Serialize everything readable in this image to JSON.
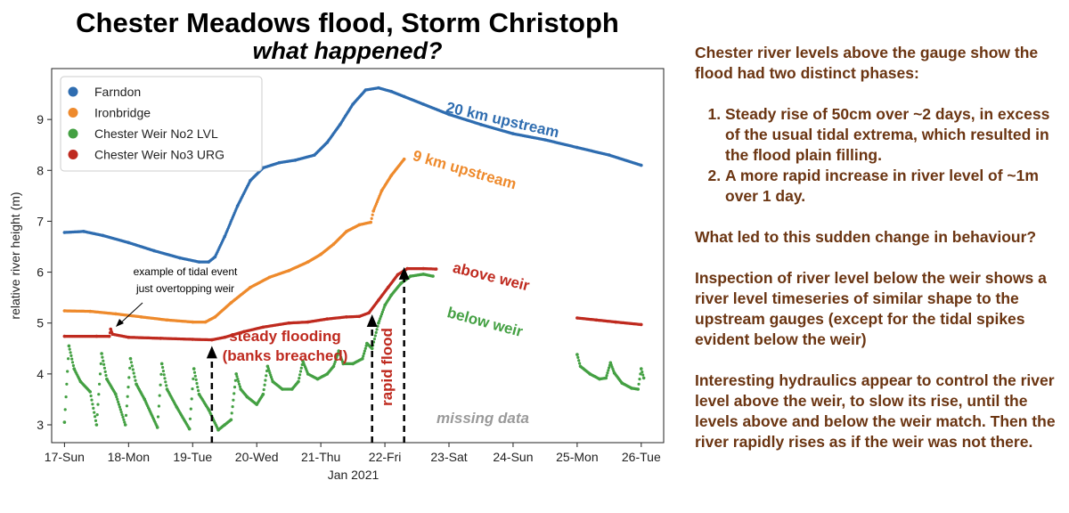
{
  "title": "Chester Meadows flood, Storm Christoph",
  "subtitle": "what happened?",
  "chart_data": {
    "type": "scatter",
    "xlabel": "Jan 2021",
    "ylabel": "relative river height (m)",
    "xlim": [
      16.8,
      26.35
    ],
    "ylim": [
      2.65,
      10.0
    ],
    "x_ticks": [
      17,
      18,
      19,
      20,
      21,
      22,
      23,
      24,
      25,
      26
    ],
    "x_tick_labels": [
      "17-Sun",
      "18-Mon",
      "19-Tue",
      "20-Wed",
      "21-Thu",
      "22-Fri",
      "23-Sat",
      "24-Sun",
      "25-Mon",
      "26-Tue"
    ],
    "y_ticks": [
      3,
      4,
      5,
      6,
      7,
      8,
      9
    ],
    "y_tick_labels": [
      "3",
      "4",
      "5",
      "6",
      "7",
      "8",
      "9"
    ],
    "legend_position": "top-left",
    "series": [
      {
        "name": "Farndon",
        "color": "#2f6db0",
        "points": [
          [
            17.0,
            6.78
          ],
          [
            17.3,
            6.8
          ],
          [
            17.6,
            6.72
          ],
          [
            18.0,
            6.58
          ],
          [
            18.4,
            6.42
          ],
          [
            18.8,
            6.28
          ],
          [
            19.1,
            6.2
          ],
          [
            19.25,
            6.2
          ],
          [
            19.35,
            6.3
          ],
          [
            19.5,
            6.7
          ],
          [
            19.7,
            7.3
          ],
          [
            19.9,
            7.8
          ],
          [
            20.1,
            8.05
          ],
          [
            20.35,
            8.15
          ],
          [
            20.6,
            8.2
          ],
          [
            20.9,
            8.3
          ],
          [
            21.1,
            8.55
          ],
          [
            21.3,
            8.9
          ],
          [
            21.5,
            9.3
          ],
          [
            21.7,
            9.58
          ],
          [
            21.9,
            9.62
          ],
          [
            22.1,
            9.55
          ],
          [
            22.3,
            9.45
          ],
          [
            22.6,
            9.3
          ],
          [
            23.0,
            9.1
          ],
          [
            23.5,
            8.9
          ],
          [
            24.0,
            8.72
          ],
          [
            24.5,
            8.6
          ],
          [
            25.0,
            8.45
          ],
          [
            25.5,
            8.3
          ],
          [
            26.0,
            8.1
          ]
        ]
      },
      {
        "name": "Ironbridge",
        "color": "#ee8a2c",
        "points": [
          [
            17.0,
            5.24
          ],
          [
            17.4,
            5.23
          ],
          [
            17.8,
            5.18
          ],
          [
            18.2,
            5.12
          ],
          [
            18.6,
            5.06
          ],
          [
            19.0,
            5.02
          ],
          [
            19.2,
            5.02
          ],
          [
            19.35,
            5.12
          ],
          [
            19.6,
            5.4
          ],
          [
            19.9,
            5.7
          ],
          [
            20.2,
            5.9
          ],
          [
            20.5,
            6.03
          ],
          [
            20.8,
            6.2
          ],
          [
            21.0,
            6.35
          ],
          [
            21.2,
            6.55
          ],
          [
            21.4,
            6.8
          ],
          [
            21.6,
            6.93
          ],
          [
            21.78,
            6.98
          ],
          [
            21.82,
            7.2
          ],
          [
            21.95,
            7.6
          ],
          [
            22.1,
            7.9
          ],
          [
            22.3,
            8.22
          ]
        ]
      },
      {
        "name": "Chester Weir No2 LVL",
        "color": "#44a043",
        "points": [
          [
            17.0,
            3.05
          ],
          [
            17.07,
            4.55
          ],
          [
            17.15,
            4.1
          ],
          [
            17.25,
            3.85
          ],
          [
            17.4,
            3.65
          ],
          [
            17.5,
            3.0
          ],
          [
            17.58,
            4.4
          ],
          [
            17.66,
            3.9
          ],
          [
            17.8,
            3.6
          ],
          [
            17.95,
            3.0
          ],
          [
            18.03,
            4.3
          ],
          [
            18.12,
            3.8
          ],
          [
            18.25,
            3.5
          ],
          [
            18.45,
            2.95
          ],
          [
            18.52,
            4.2
          ],
          [
            18.6,
            3.7
          ],
          [
            18.75,
            3.35
          ],
          [
            18.95,
            2.92
          ],
          [
            19.02,
            4.1
          ],
          [
            19.1,
            3.6
          ],
          [
            19.25,
            3.3
          ],
          [
            19.4,
            2.9
          ],
          [
            19.5,
            3.0
          ],
          [
            19.6,
            3.1
          ],
          [
            19.68,
            4.0
          ],
          [
            19.75,
            3.7
          ],
          [
            19.85,
            3.55
          ],
          [
            20.0,
            3.4
          ],
          [
            20.1,
            3.6
          ],
          [
            20.17,
            4.15
          ],
          [
            20.25,
            3.85
          ],
          [
            20.4,
            3.7
          ],
          [
            20.55,
            3.7
          ],
          [
            20.65,
            3.85
          ],
          [
            20.72,
            4.25
          ],
          [
            20.8,
            4.0
          ],
          [
            20.95,
            3.9
          ],
          [
            21.1,
            4.0
          ],
          [
            21.2,
            4.15
          ],
          [
            21.28,
            4.45
          ],
          [
            21.35,
            4.2
          ],
          [
            21.5,
            4.2
          ],
          [
            21.65,
            4.3
          ],
          [
            21.72,
            4.6
          ],
          [
            21.8,
            4.5
          ],
          [
            21.9,
            5.0
          ],
          [
            22.0,
            5.35
          ],
          [
            22.1,
            5.55
          ],
          [
            22.25,
            5.78
          ],
          [
            22.4,
            5.92
          ],
          [
            22.6,
            5.96
          ],
          [
            22.75,
            5.92
          ],
          [
            25.0,
            4.38
          ],
          [
            25.05,
            4.15
          ],
          [
            25.2,
            4.0
          ],
          [
            25.35,
            3.9
          ],
          [
            25.45,
            3.92
          ],
          [
            25.52,
            4.22
          ],
          [
            25.58,
            4.02
          ],
          [
            25.7,
            3.82
          ],
          [
            25.85,
            3.72
          ],
          [
            25.95,
            3.7
          ],
          [
            26.0,
            4.1
          ],
          [
            26.04,
            3.92
          ]
        ]
      },
      {
        "name": "Chester Weir No3 URG",
        "color": "#bf2a1f",
        "points": [
          [
            17.0,
            4.74
          ],
          [
            17.5,
            4.74
          ],
          [
            17.7,
            4.74
          ],
          [
            17.72,
            4.88
          ],
          [
            17.75,
            4.78
          ],
          [
            18.0,
            4.72
          ],
          [
            18.5,
            4.7
          ],
          [
            19.0,
            4.68
          ],
          [
            19.3,
            4.67
          ],
          [
            19.5,
            4.72
          ],
          [
            19.8,
            4.83
          ],
          [
            20.1,
            4.92
          ],
          [
            20.5,
            5.0
          ],
          [
            20.8,
            5.02
          ],
          [
            21.1,
            5.08
          ],
          [
            21.4,
            5.12
          ],
          [
            21.6,
            5.13
          ],
          [
            21.75,
            5.2
          ],
          [
            21.9,
            5.45
          ],
          [
            22.05,
            5.7
          ],
          [
            22.2,
            5.95
          ],
          [
            22.35,
            6.07
          ],
          [
            22.6,
            6.07
          ],
          [
            22.8,
            6.06
          ],
          [
            25.0,
            5.1
          ],
          [
            25.3,
            5.06
          ],
          [
            25.6,
            5.02
          ],
          [
            26.0,
            4.97
          ]
        ]
      }
    ],
    "line_labels": [
      {
        "text": "20 km upstream",
        "series": "Farndon"
      },
      {
        "text": "9 km upstream",
        "series": "Ironbridge"
      },
      {
        "text": "above weir",
        "series": "Chester Weir No3 URG"
      },
      {
        "text": "below weir",
        "series": "Chester Weir No2 LVL"
      }
    ],
    "annotations": {
      "tidal_event": [
        "example of tidal event",
        "just overtopping weir"
      ],
      "steady_flooding": [
        "steady flooding",
        "(banks breached)"
      ],
      "rapid_flood": "rapid flood",
      "missing_data": "missing data"
    },
    "event_markers": [
      {
        "x": 19.3,
        "y": 4.55
      },
      {
        "x": 21.8,
        "y": 5.17
      },
      {
        "x": 22.3,
        "y": 6.1
      }
    ]
  },
  "panel": {
    "intro": "Chester river levels above the gauge show the flood had two distinct phases:",
    "phases": [
      "Steady rise of 50cm over ~2 days, in excess of the usual tidal extrema, which resulted in the flood plain filling.",
      "A more rapid increase in river level of ~1m over 1 day."
    ],
    "question": "What led to this sudden change in behaviour?",
    "inspection": "Inspection of river level below the weir shows a river level timeseries of similar shape to the upstream gauges (except for the tidal spikes evident below the weir)",
    "conclusion": "Interesting hydraulics appear to control the river level above the weir, to slow its rise, until the levels above and below the weir match. Then the river rapidly rises as if the weir was not there."
  }
}
